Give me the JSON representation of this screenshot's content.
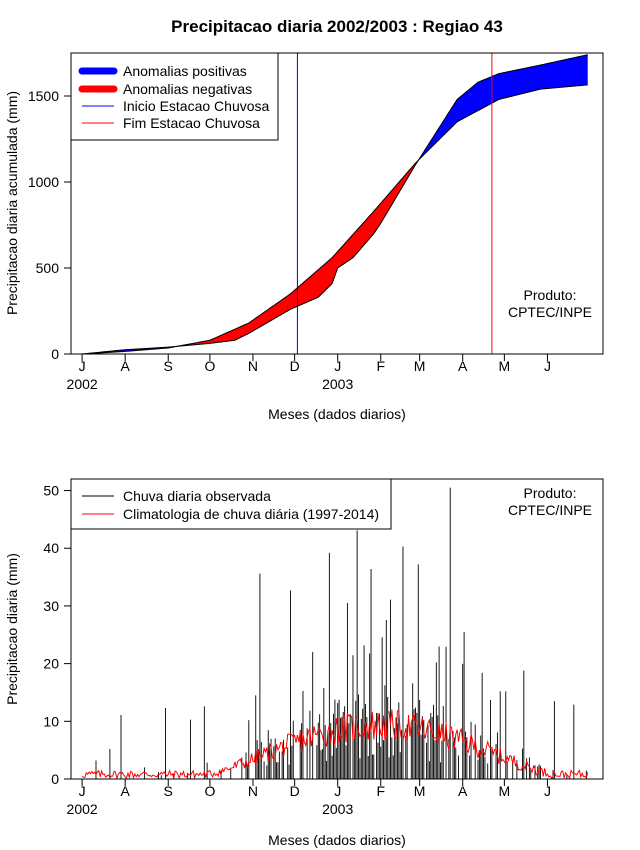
{
  "title": "Precipitacao diaria 2002/2003 : Regiao 43",
  "chart_data": [
    {
      "type": "area",
      "name": "acumulada",
      "ylabel": "Precipitacao diaria acumulada (mm)",
      "xlabel": "Meses (dados diarios)",
      "ylim": [
        0,
        1750
      ],
      "xlim_days": [
        -8,
        375
      ],
      "yticks": [
        0,
        500,
        1000,
        1500
      ],
      "months": [
        "J",
        "A",
        "S",
        "O",
        "N",
        "D",
        "J",
        "F",
        "M",
        "A",
        "M",
        "J"
      ],
      "month_days": [
        0,
        31,
        62,
        92,
        123,
        153,
        184,
        215,
        243,
        274,
        304,
        335
      ],
      "year_labels": [
        {
          "text": "2002",
          "day": 0
        },
        {
          "text": "2003",
          "day": 184
        }
      ],
      "legend": [
        {
          "label": "Anomalias positivas",
          "color": "#0000ff",
          "kind": "thick"
        },
        {
          "label": "Anomalias negativas",
          "color": "#ff0000",
          "kind": "thick"
        },
        {
          "label": "Inicio Estacao Chuvosa",
          "color": "#0000ff",
          "kind": "thin"
        },
        {
          "label": "Fim Estacao Chuvosa",
          "color": "#ff0000",
          "kind": "thin"
        }
      ],
      "onset_day": 155,
      "end_day": 295,
      "note": [
        "Produto:",
        "CPTEC/INPE"
      ],
      "climatology": {
        "days": [
          0,
          31,
          62,
          92,
          120,
          150,
          180,
          210,
          240,
          270,
          300,
          330,
          364
        ],
        "values": [
          0,
          15,
          35,
          80,
          180,
          350,
          560,
          830,
          1110,
          1350,
          1480,
          1540,
          1565
        ]
      },
      "observed": {
        "days": [
          0,
          31,
          62,
          92,
          110,
          120,
          150,
          170,
          180,
          184,
          195,
          210,
          215,
          240,
          270,
          285,
          300,
          330,
          364
        ],
        "values": [
          0,
          25,
          40,
          62,
          80,
          120,
          260,
          330,
          410,
          500,
          560,
          700,
          760,
          1100,
          1480,
          1580,
          1630,
          1680,
          1740
        ]
      }
    },
    {
      "type": "bar",
      "name": "diaria",
      "ylabel": "Precipitacao diaria (mm)",
      "xlabel": "Meses (dados diarios)",
      "ylim": [
        0,
        52
      ],
      "xlim_days": [
        -8,
        375
      ],
      "yticks": [
        0,
        10,
        20,
        30,
        40,
        50
      ],
      "months": [
        "J",
        "A",
        "S",
        "O",
        "N",
        "D",
        "J",
        "F",
        "M",
        "A",
        "M",
        "J"
      ],
      "month_days": [
        0,
        31,
        62,
        92,
        123,
        153,
        184,
        215,
        243,
        274,
        304,
        335
      ],
      "year_labels": [
        {
          "text": "2002",
          "day": 0
        },
        {
          "text": "2003",
          "day": 184
        }
      ],
      "legend": [
        {
          "label": "Chuva diaria observada",
          "color": "#000000"
        },
        {
          "label": "Climatologia de chuva diária (1997-2014)",
          "color": "#ff0000"
        }
      ],
      "note": [
        "Produto:",
        "CPTEC/INPE"
      ],
      "peaks": [
        {
          "day": 10,
          "value": 3.2
        },
        {
          "day": 20,
          "value": 5.2
        },
        {
          "day": 28,
          "value": 11.1
        },
        {
          "day": 60,
          "value": 12.3
        },
        {
          "day": 78,
          "value": 10.3
        },
        {
          "day": 88,
          "value": 12.6
        },
        {
          "day": 120,
          "value": 10.2
        },
        {
          "day": 125,
          "value": 14.5
        },
        {
          "day": 128,
          "value": 35.6
        },
        {
          "day": 150,
          "value": 32.7
        },
        {
          "day": 166,
          "value": 22.0
        },
        {
          "day": 178,
          "value": 39.2
        },
        {
          "day": 191,
          "value": 30.5
        },
        {
          "day": 198,
          "value": 43.1
        },
        {
          "day": 208,
          "value": 36.4
        },
        {
          "day": 222,
          "value": 31.1
        },
        {
          "day": 231,
          "value": 40.3
        },
        {
          "day": 242,
          "value": 37.2
        },
        {
          "day": 255,
          "value": 20.2
        },
        {
          "day": 265,
          "value": 50.5
        },
        {
          "day": 275,
          "value": 25.5
        },
        {
          "day": 288,
          "value": 18.4
        },
        {
          "day": 305,
          "value": 15.2
        },
        {
          "day": 318,
          "value": 18.8
        },
        {
          "day": 340,
          "value": 13.5
        },
        {
          "day": 354,
          "value": 12.9
        }
      ]
    }
  ]
}
